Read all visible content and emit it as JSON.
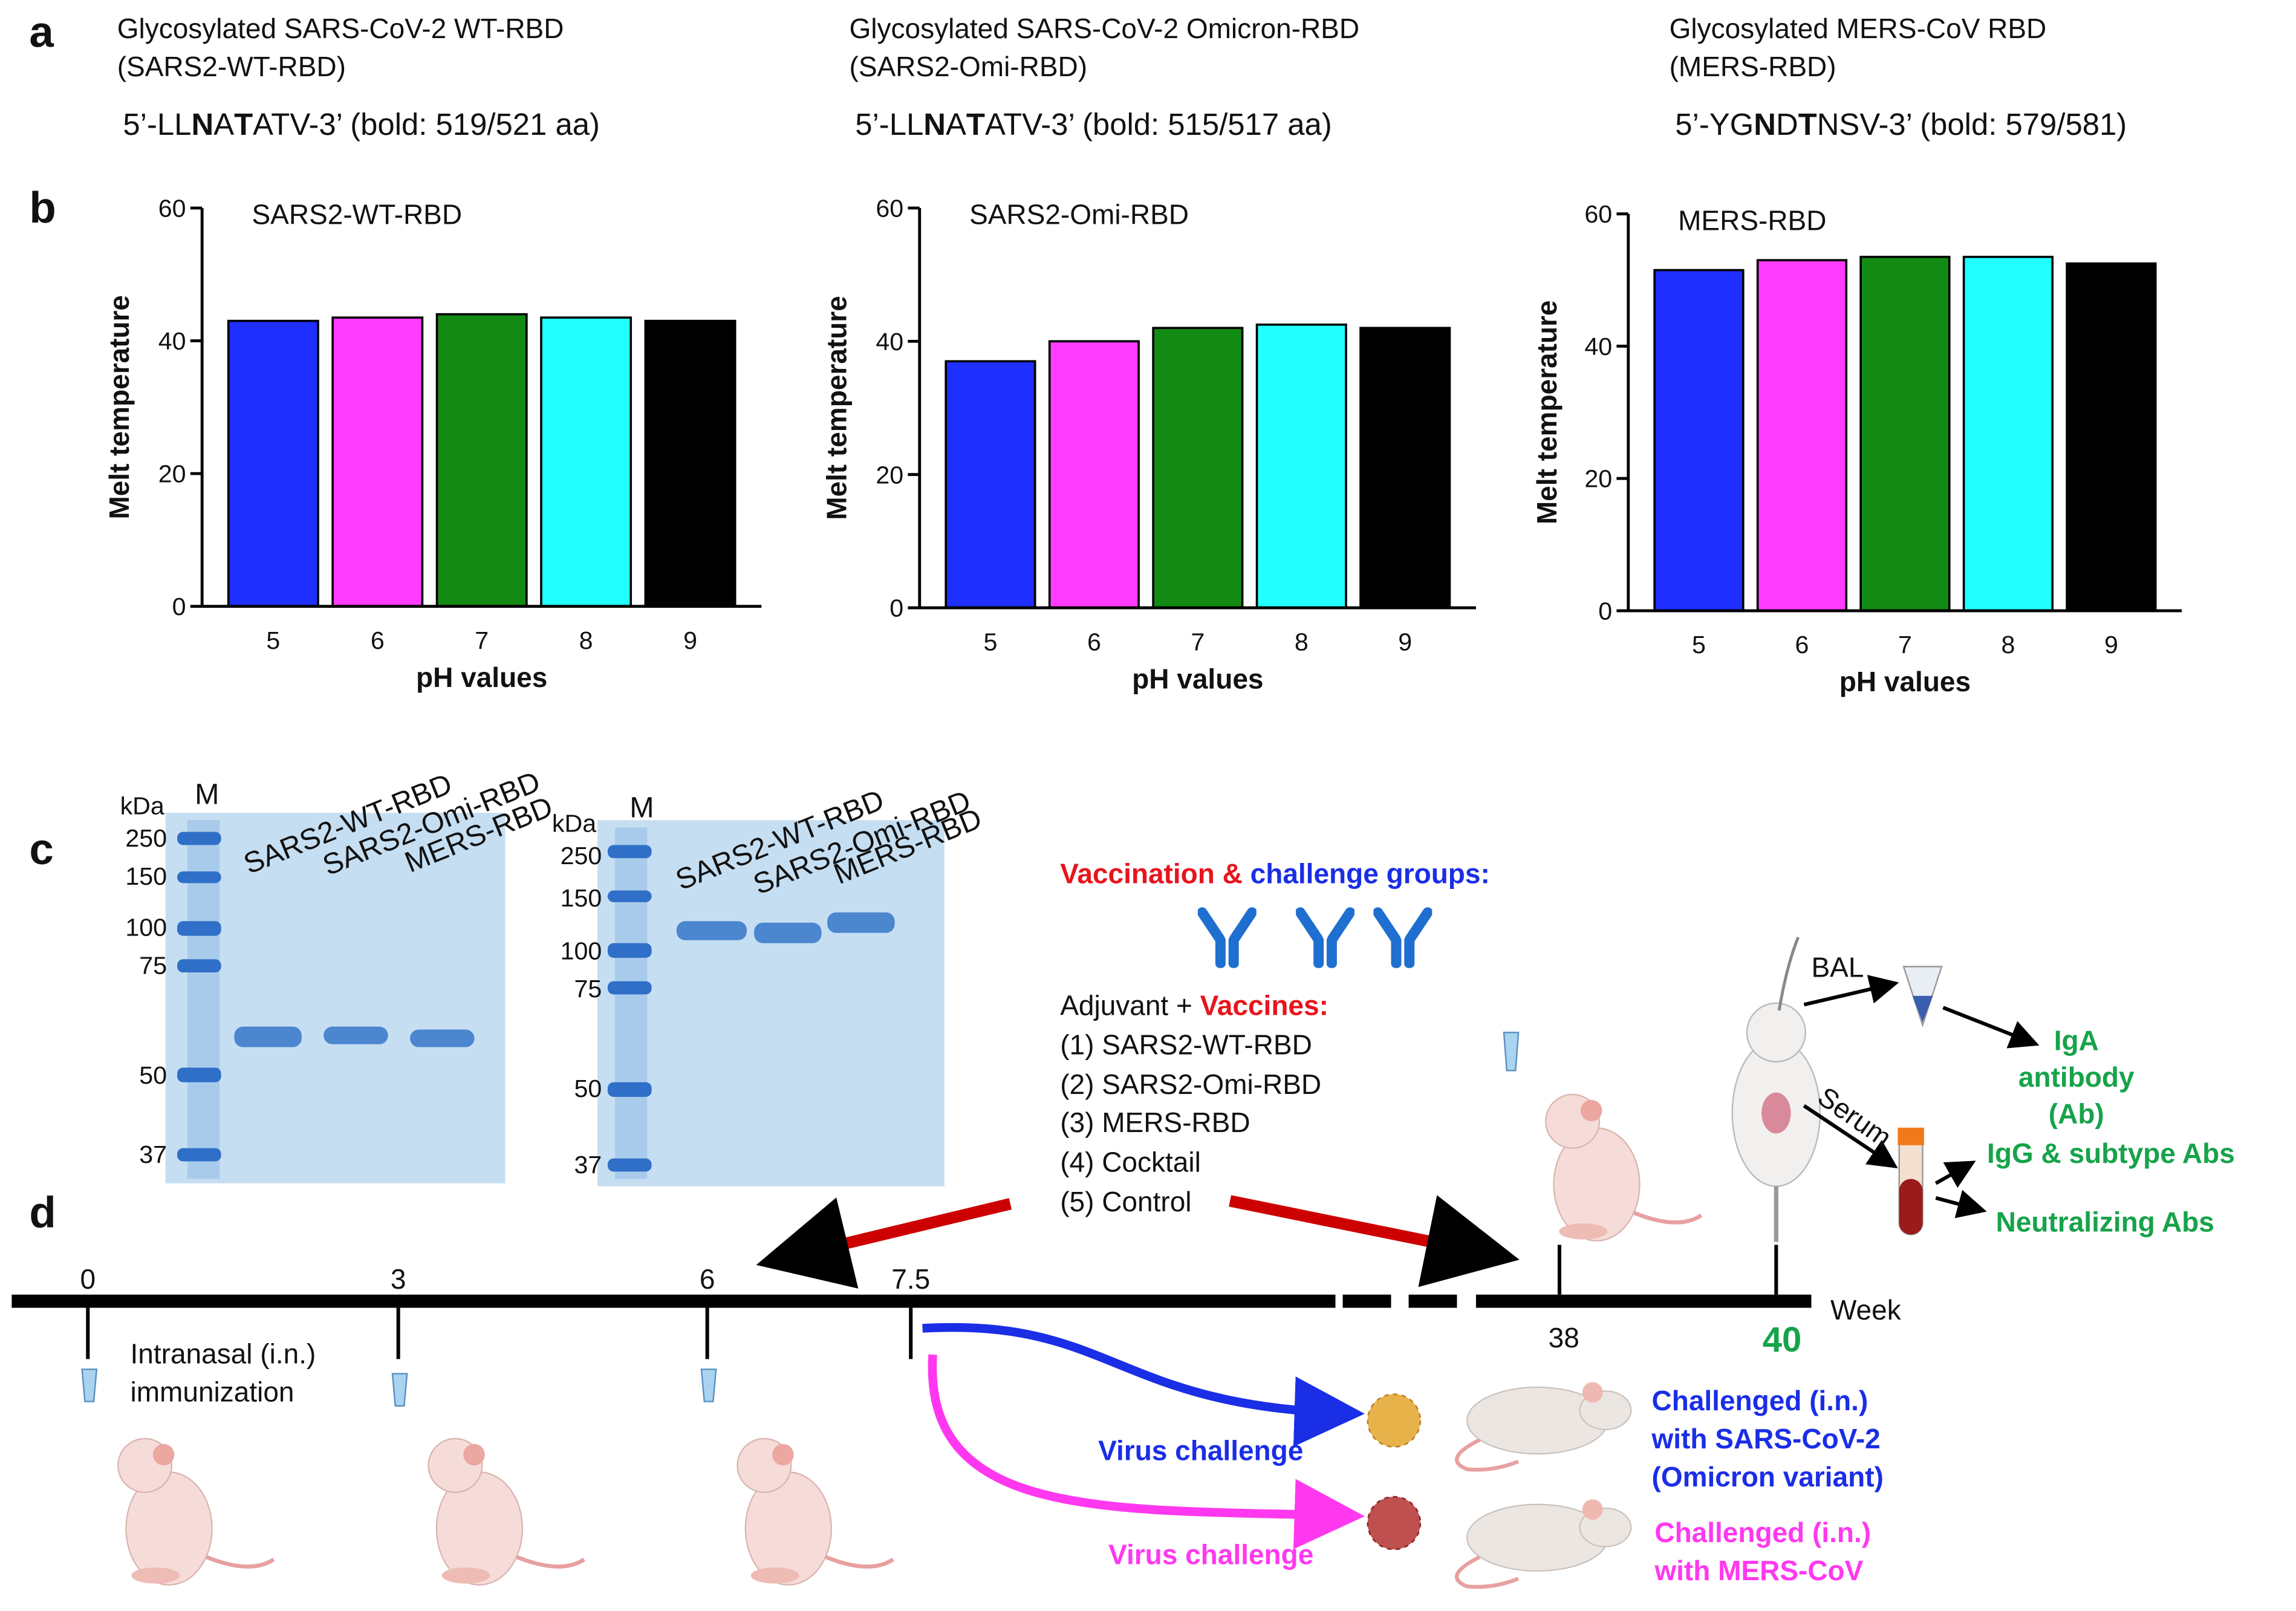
{
  "panel_labels": [
    "a",
    "b",
    "c",
    "d"
  ],
  "panel_a": {
    "constructs": [
      {
        "title_lines": [
          "Glycosylated SARS-CoV-2 WT-RBD",
          "(SARS2-WT-RBD)"
        ],
        "sequence": [
          {
            "text": "5’-LL",
            "bold": false
          },
          {
            "text": "N",
            "bold": true
          },
          {
            "text": "A",
            "bold": false
          },
          {
            "text": "T",
            "bold": true
          },
          {
            "text": "ATV-3’ (bold: 519/521 aa)",
            "bold": false
          }
        ]
      },
      {
        "title_lines": [
          "Glycosylated SARS-CoV-2 Omicron-RBD",
          "(SARS2-Omi-RBD)"
        ],
        "sequence": [
          {
            "text": "5’-LL",
            "bold": false
          },
          {
            "text": "N",
            "bold": true
          },
          {
            "text": "A",
            "bold": false
          },
          {
            "text": "T",
            "bold": true
          },
          {
            "text": "ATV-3’ (bold: 515/517 aa)",
            "bold": false
          }
        ]
      },
      {
        "title_lines": [
          "Glycosylated MERS-CoV RBD",
          "(MERS-RBD)"
        ],
        "sequence": [
          {
            "text": "5’-YG",
            "bold": false
          },
          {
            "text": "N",
            "bold": true
          },
          {
            "text": "D",
            "bold": false
          },
          {
            "text": "T",
            "bold": true
          },
          {
            "text": "NSV-3’ (bold: 579/581)",
            "bold": false
          }
        ]
      }
    ]
  },
  "chart_data": [
    {
      "type": "bar",
      "title": "SARS2-WT-RBD",
      "x_label": "pH values",
      "y_label": "Melt temperature",
      "categories": [
        "5",
        "6",
        "7",
        "8",
        "9"
      ],
      "values": [
        43,
        43.5,
        44,
        43.5,
        43
      ],
      "colors": [
        "#1f2fff",
        "#ff3cff",
        "#138a13",
        "#22ffff",
        "#000000"
      ],
      "ylim": [
        0,
        60
      ],
      "yticks": [
        0,
        20,
        40,
        60
      ]
    },
    {
      "type": "bar",
      "title": "SARS2-Omi-RBD",
      "x_label": "pH values",
      "y_label": "Melt temperature",
      "categories": [
        "5",
        "6",
        "7",
        "8",
        "9"
      ],
      "values": [
        37,
        40,
        42,
        42.5,
        42
      ],
      "colors": [
        "#1f2fff",
        "#ff3cff",
        "#138a13",
        "#22ffff",
        "#000000"
      ],
      "ylim": [
        0,
        60
      ],
      "yticks": [
        0,
        20,
        40,
        60
      ]
    },
    {
      "type": "bar",
      "title": "MERS-RBD",
      "x_label": "pH values",
      "y_label": "Melt temperature",
      "categories": [
        "5",
        "6",
        "7",
        "8",
        "9"
      ],
      "values": [
        51.5,
        53,
        53.5,
        53.5,
        52.5
      ],
      "colors": [
        "#1f2fff",
        "#ff3cff",
        "#138a13",
        "#22ffff",
        "#000000"
      ],
      "ylim": [
        0,
        60
      ],
      "yticks": [
        0,
        20,
        40,
        60
      ]
    }
  ],
  "panel_c": {
    "gels": [
      {
        "unit": "kDa",
        "marker_lane": "M",
        "markers": [
          250,
          150,
          100,
          75,
          50,
          37
        ],
        "lanes": [
          "SARS2-WT-RBD",
          "SARS2-Omi-RBD",
          "MERS-RBD"
        ]
      },
      {
        "unit": "kDa",
        "marker_lane": "M",
        "markers": [
          250,
          150,
          100,
          75,
          50,
          37
        ],
        "lanes": [
          "SARS2-WT-RBD",
          "SARS2-Omi-RBD",
          "MERS-RBD"
        ]
      }
    ]
  },
  "panel_d": {
    "groups_title": [
      "Vaccination &",
      "challenge groups:"
    ],
    "vaccine_heading": [
      "Adjuvant +",
      "Vaccines:"
    ],
    "vaccines": [
      "(1) SARS2-WT-RBD",
      "(2) SARS2-Omi-RBD",
      "(3) MERS-RBD",
      "(4) Cocktail",
      "(5) Control"
    ],
    "weeks": [
      0,
      3,
      6,
      7.5,
      38,
      40
    ],
    "week_unit": "Week",
    "immunization": [
      "Intranasal (i.n.)",
      "immunization"
    ],
    "sampling": {
      "bal": "BAL",
      "serum": "Serum",
      "iga": [
        "IgA",
        "antibody",
        "(Ab)"
      ],
      "igg": "IgG & subtype Abs",
      "neutralizing": "Neutralizing Abs"
    },
    "challenges": [
      {
        "label": "Virus challenge",
        "result": [
          "Challenged (i.n.)",
          "with SARS-CoV-2",
          "(Omicron variant)"
        ]
      },
      {
        "label": "Virus challenge",
        "result": [
          "Challenged (i.n.)",
          "with MERS-CoV"
        ]
      }
    ]
  }
}
